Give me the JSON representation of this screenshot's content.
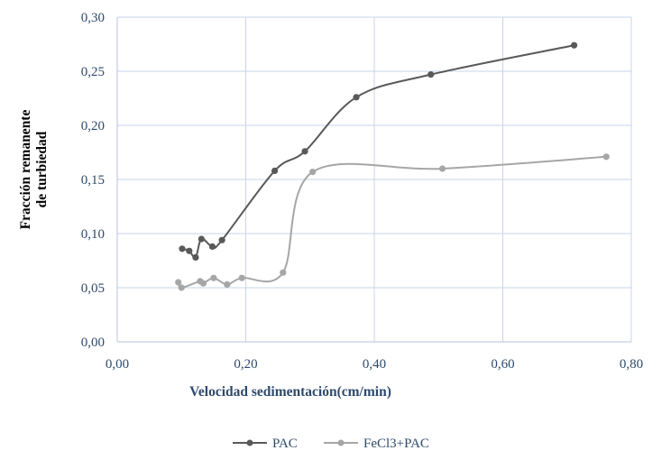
{
  "chart_data": {
    "type": "scatter",
    "title": "",
    "xlabel": "Velocidad sedimentación(cm/min)",
    "ylabel": [
      "Fracción remanente",
      "de turbiedad"
    ],
    "xlim": [
      0,
      0.8
    ],
    "ylim": [
      0,
      0.3
    ],
    "x_ticks": [
      0,
      0.2,
      0.4,
      0.6,
      0.8
    ],
    "x_tick_labels": [
      "0,00",
      "0,20",
      "0,40",
      "0,60",
      "0,80"
    ],
    "y_ticks": [
      0,
      0.05,
      0.1,
      0.15,
      0.2,
      0.25,
      0.3
    ],
    "y_tick_labels": [
      "0,00",
      "0,05",
      "0,10",
      "0,15",
      "0,20",
      "0,25",
      "0,30"
    ],
    "grid": true,
    "smooth_lines": true,
    "legend_position": "bottom",
    "series": [
      {
        "name": "PAC",
        "color": "#595959",
        "points": [
          [
            0.101,
            0.086
          ],
          [
            0.112,
            0.084
          ],
          [
            0.122,
            0.078
          ],
          [
            0.131,
            0.095
          ],
          [
            0.148,
            0.088
          ],
          [
            0.163,
            0.094
          ],
          [
            0.245,
            0.158
          ],
          [
            0.292,
            0.176
          ],
          [
            0.372,
            0.226
          ],
          [
            0.488,
            0.247
          ],
          [
            0.711,
            0.274
          ]
        ]
      },
      {
        "name": "FeCl3+PAC",
        "color": "#a6a6a6",
        "points": [
          [
            0.095,
            0.055
          ],
          [
            0.1,
            0.05
          ],
          [
            0.129,
            0.056
          ],
          [
            0.134,
            0.054
          ],
          [
            0.15,
            0.059
          ],
          [
            0.171,
            0.053
          ],
          [
            0.194,
            0.059
          ],
          [
            0.258,
            0.064
          ],
          [
            0.304,
            0.157
          ],
          [
            0.506,
            0.16
          ],
          [
            0.761,
            0.171
          ]
        ]
      }
    ]
  }
}
